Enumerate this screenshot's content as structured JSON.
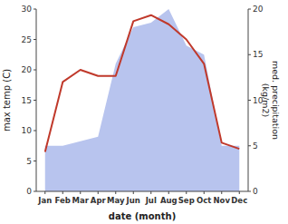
{
  "chart_data": {
    "type": "line",
    "xlabel": "date (month)",
    "ylabel": "max temp (C)",
    "y2label": "med. precipitation\n(kg/m2)",
    "categories": [
      "Jan",
      "Feb",
      "Mar",
      "Apr",
      "May",
      "Jun",
      "Jul",
      "Aug",
      "Sep",
      "Oct",
      "Nov",
      "Dec"
    ],
    "series": [
      {
        "type": "area",
        "axis": "y2",
        "color": "#b8c4ee",
        "values": [
          5.0,
          5.0,
          5.5,
          6.0,
          14.0,
          18.0,
          18.5,
          20.0,
          16.0,
          15.0,
          5.0,
          5.0
        ]
      },
      {
        "type": "line",
        "color": "#c0392b",
        "values": [
          6.5,
          18.0,
          20.0,
          19.0,
          19.0,
          28.0,
          29.0,
          27.5,
          25.0,
          21.0,
          8.0,
          7.0
        ]
      }
    ],
    "ylim": [
      0,
      30
    ],
    "yticks": [
      0,
      5,
      10,
      15,
      20,
      25,
      30
    ],
    "y2lim": [
      0,
      20
    ],
    "y2ticks": [
      0,
      5,
      10,
      15,
      20
    ]
  }
}
